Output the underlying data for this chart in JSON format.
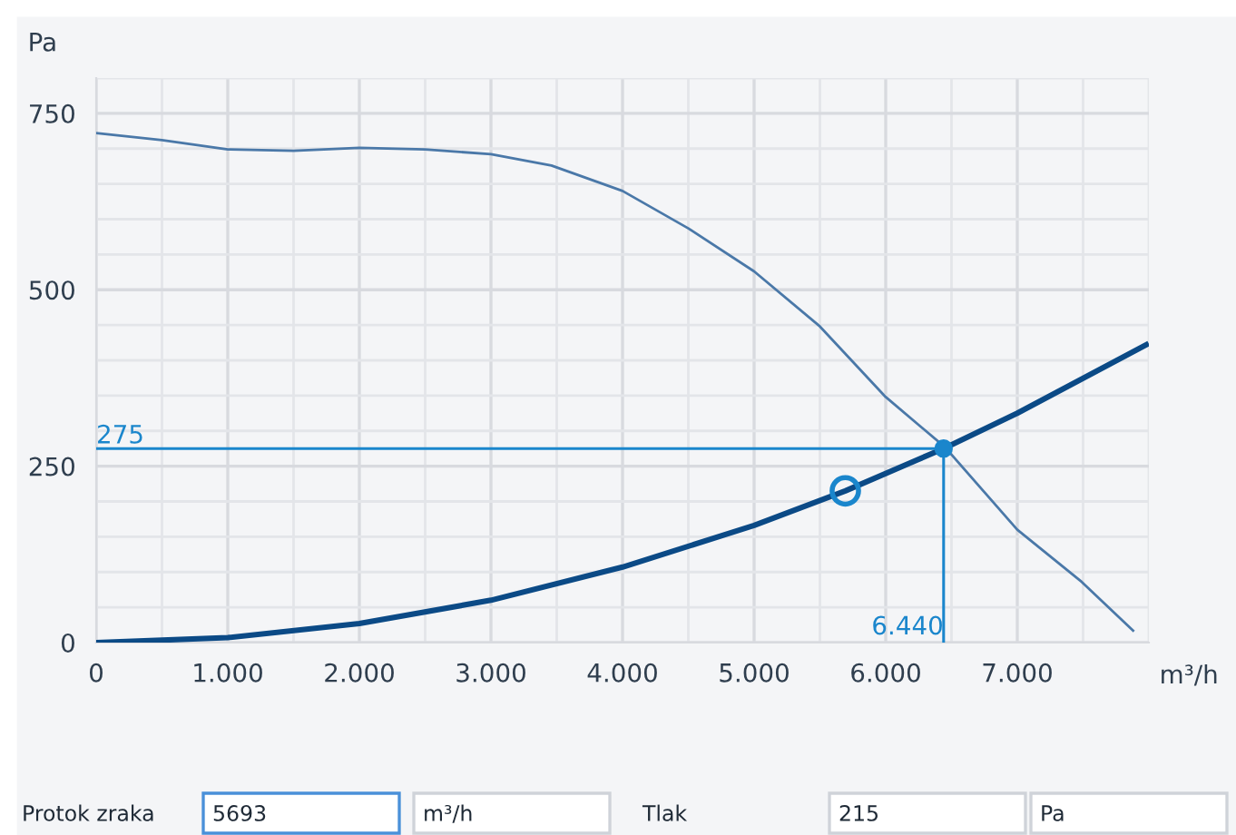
{
  "chart_data": {
    "type": "line",
    "xlabel": "m³/h",
    "ylabel": "Pa",
    "xlim": [
      0,
      8000
    ],
    "ylim": [
      0,
      800
    ],
    "xticks": [
      0,
      {
        "value": 1000,
        "label": "1.000"
      },
      {
        "value": 2000,
        "label": "2.000"
      },
      {
        "value": 3000,
        "label": "3.000"
      },
      {
        "value": 4000,
        "label": "4.000"
      },
      {
        "value": 5000,
        "label": "5.000"
      },
      {
        "value": 6000,
        "label": "6.000"
      },
      {
        "value": 7000,
        "label": "7.000"
      }
    ],
    "yticks": [
      0,
      250,
      500,
      750
    ],
    "grid": true,
    "marker": "none",
    "line_style": "solid",
    "series": [
      {
        "color": "#4a78a8",
        "x": [
          0,
          500,
          1000,
          1500,
          2000,
          2500,
          3000,
          3460,
          4000,
          4500,
          5000,
          5500,
          6000,
          6450,
          7000,
          7490,
          7880
        ],
        "values": [
          722,
          712,
          699,
          697,
          701,
          699,
          692,
          676,
          640,
          587,
          526,
          448,
          348,
          277,
          160,
          86,
          17
        ]
      },
      {
        "color": "#0b4a86",
        "x": [
          0,
          1000,
          2000,
          3000,
          4000,
          5000,
          5693,
          6440,
          7000,
          7980
        ],
        "values": [
          0,
          7,
          27,
          60,
          107,
          166,
          215,
          275,
          325,
          422
        ]
      },
      {
        "type": "scatter",
        "color": "#1a86cc",
        "marker": "circle",
        "x": [
          5693
        ],
        "values": [
          215
        ]
      },
      {
        "type": "scatter",
        "color": "#1a86cc",
        "marker": "circle",
        "x": [
          6440
        ],
        "values": [
          275
        ]
      }
    ],
    "ref_lines": [
      {
        "axis": "y",
        "value": 275,
        "label": "275",
        "color": "#1a86cc"
      },
      {
        "axis": "x",
        "value": 6440,
        "label": "6.440",
        "color": "#1a86cc"
      }
    ],
    "annotations": [
      "Protok zraka",
      "5693",
      "m³/h",
      "Tlak",
      "215",
      "Pa"
    ]
  }
}
